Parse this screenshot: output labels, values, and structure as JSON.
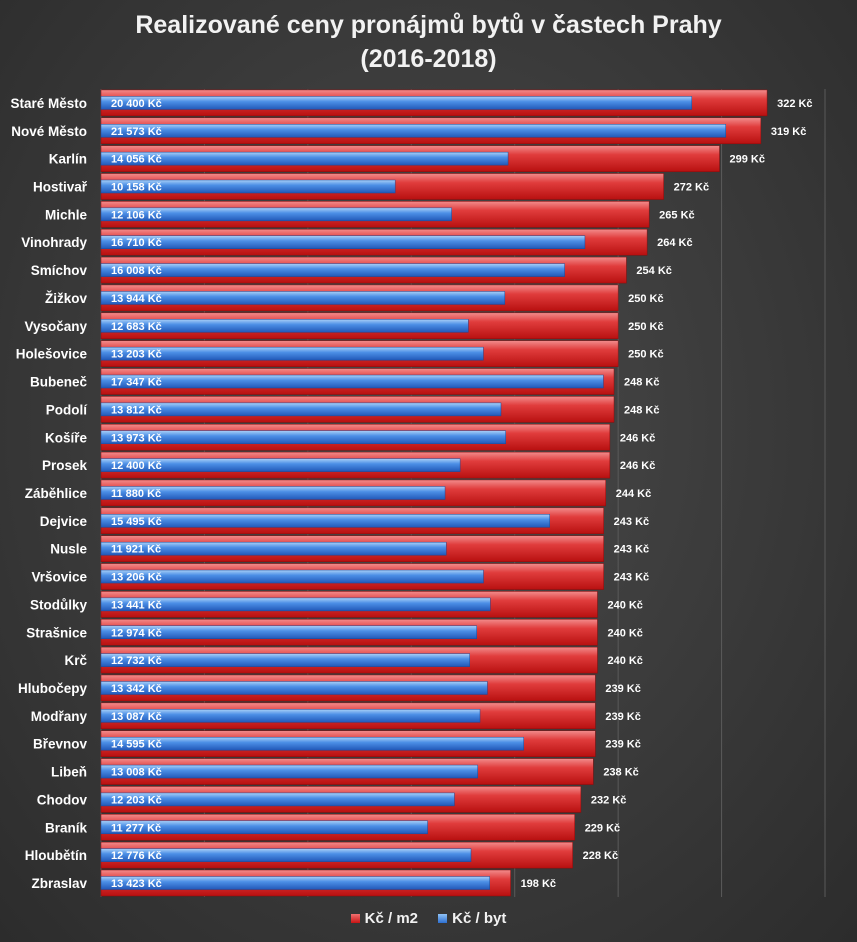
{
  "chart_data": {
    "type": "bar",
    "orientation": "horizontal",
    "title_lines": [
      "Realizované ceny pronájmů bytů v častech Prahy",
      "(2016-2018)"
    ],
    "categories": [
      "Staré Město",
      "Nové Město",
      "Karlín",
      "Hostivař",
      "Michle",
      "Vinohrady",
      "Smíchov",
      "Žižkov",
      "Vysočany",
      "Holešovice",
      "Bubeneč",
      "Podolí",
      "Košíře",
      "Prosek",
      "Záběhlice",
      "Dejvice",
      "Nusle",
      "Vršovice",
      "Stodůlky",
      "Strašnice",
      "Krč",
      "Hlubočepy",
      "Modřany",
      "Břevnov",
      "Libeň",
      "Chodov",
      "Braník",
      "Hloubětín",
      "Zbraslav"
    ],
    "series": [
      {
        "name": "Kč / m2",
        "values": [
          322,
          319,
          299,
          272,
          265,
          264,
          254,
          250,
          250,
          250,
          248,
          248,
          246,
          246,
          244,
          243,
          243,
          243,
          240,
          240,
          240,
          239,
          239,
          239,
          238,
          232,
          229,
          228,
          198
        ],
        "labels": [
          "322 Kč",
          "319 Kč",
          "299 Kč",
          "272 Kč",
          "265 Kč",
          "264 Kč",
          "254 Kč",
          "250 Kč",
          "250 Kč",
          "250 Kč",
          "248 Kč",
          "248 Kč",
          "246 Kč",
          "246 Kč",
          "244 Kč",
          "243 Kč",
          "243 Kč",
          "243 Kč",
          "240 Kč",
          "240 Kč",
          "240 Kč",
          "239 Kč",
          "239 Kč",
          "239 Kč",
          "238 Kč",
          "232 Kč",
          "229 Kč",
          "228 Kč",
          "198 Kč"
        ],
        "color": "#d42a2a"
      },
      {
        "name": "Kč / byt",
        "values": [
          20400,
          21573,
          14056,
          10158,
          12106,
          16710,
          16008,
          13944,
          12683,
          13203,
          17347,
          13812,
          13973,
          12400,
          11880,
          15495,
          11921,
          13206,
          13441,
          12974,
          12732,
          13342,
          13087,
          14595,
          13008,
          12203,
          11277,
          12776,
          13423
        ],
        "labels": [
          "20 400 Kč",
          "21 573 Kč",
          "14 056 Kč",
          "10 158 Kč",
          "12 106 Kč",
          "16 710 Kč",
          "16 008 Kč",
          "13 944 Kč",
          "12 683 Kč",
          "13 203 Kč",
          "17 347 Kč",
          "13 812 Kč",
          "13 973 Kč",
          "12 400 Kč",
          "11 880 Kč",
          "15 495 Kč",
          "11 921 Kč",
          "13 206 Kč",
          "13 441 Kč",
          "12 974 Kč",
          "12 732 Kč",
          "13 342 Kč",
          "13 087 Kč",
          "14 595 Kč",
          "13 008 Kč",
          "12 203 Kč",
          "11 277 Kč",
          "12 776 Kč",
          "13 423 Kč"
        ],
        "color": "#3a7fe0"
      }
    ],
    "legend_position": "bottom",
    "grid": true,
    "axis_ranges": {
      "Kč / m2": [
        0,
        350
      ],
      "Kč / byt": [
        0,
        25000
      ]
    },
    "colors": {
      "red": "#d42a2a",
      "blue": "#3a7fe0",
      "background": "#3c3c3c"
    }
  }
}
